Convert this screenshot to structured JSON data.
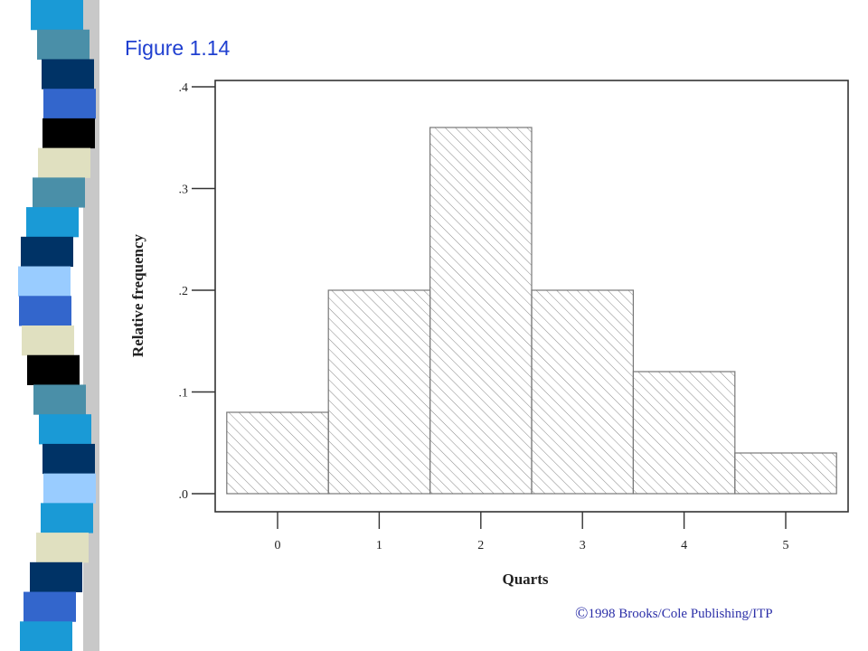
{
  "slide": {
    "title": "Figure 1.14",
    "copyright_symbol": "©",
    "copyright_text": "1998 Brooks/Cole Publishing/ITP",
    "title_color": "#1f3fd0",
    "copyright_color": "#2b2fa8",
    "stripe_colors": [
      "#1a9ad6",
      "#4a8fa8",
      "#003366",
      "#3366cc",
      "#000000",
      "#e0e0c0",
      "#4a8fa8",
      "#1a9ad6",
      "#003366",
      "#99ccff",
      "#3366cc",
      "#e0e0c0",
      "#000000",
      "#4a8fa8",
      "#1a9ad6",
      "#003366",
      "#99ccff",
      "#1a9ad6",
      "#e0e0c0",
      "#003366",
      "#3366cc",
      "#1a9ad6"
    ]
  },
  "chart_data": {
    "type": "bar",
    "title": "",
    "categories": [
      "0",
      "1",
      "2",
      "3",
      "4",
      "5"
    ],
    "values": [
      0.08,
      0.2,
      0.36,
      0.2,
      0.12,
      0.04
    ],
    "xlabel": "Quarts",
    "ylabel": "Relative frequency",
    "ylim": [
      0,
      0.4
    ],
    "yticks": [
      0,
      0.1,
      0.2,
      0.3,
      0.4
    ],
    "ytick_labels": [
      ".0",
      ".1",
      ".2",
      ".3",
      ".4"
    ],
    "bar_fill": "diagonal hatch",
    "grid": false,
    "legend": "none"
  }
}
